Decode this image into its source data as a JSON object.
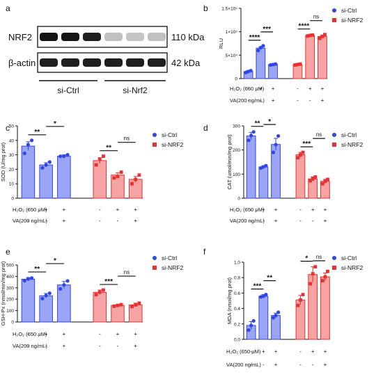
{
  "colors": {
    "blue": "#2f45e8",
    "blue_fill": "#9aa6f5",
    "red": "#e83030",
    "red_fill": "#f5a3a3",
    "blot_band": "#1a1a1a",
    "blot_band_faint": "#bdbdbd"
  },
  "chart_data": [
    {
      "type": "blot",
      "panel_label": "a",
      "rows": [
        {
          "label": "NRF2",
          "size": "110 kDa",
          "intensities": [
            1,
            1,
            0.95,
            0.2,
            0.18,
            0.2
          ]
        },
        {
          "label": "β-actin",
          "size": "42 kDa",
          "intensities": [
            0.95,
            0.95,
            0.95,
            0.95,
            0.95,
            0.95
          ]
        }
      ],
      "groups": [
        "si-Ctrl",
        "si-Nrf2"
      ]
    },
    {
      "type": "bar",
      "panel_label": "b",
      "ylabel": "RLU",
      "yticks": [
        "1.5×10⁵",
        "1×10⁵",
        "5×10⁴",
        "0"
      ],
      "ytick_values": [
        150000,
        100000,
        50000,
        0
      ],
      "ylim": [
        0,
        150000
      ],
      "legend": [
        "si-Ctrl",
        "si-NRF2"
      ],
      "treatments": [
        {
          "label": "H₂O₂ (650 μM)",
          "signs": [
            "-",
            "+",
            "+",
            "-",
            "+",
            "+"
          ]
        },
        {
          "label": "VA(200 ng/mL)",
          "signs": [
            "-",
            "-",
            "+",
            "-",
            "-",
            "+"
          ]
        }
      ],
      "series": [
        {
          "name": "si-Ctrl",
          "values": [
            15000,
            65000,
            30000
          ],
          "errors": [
            2000,
            3000,
            2000
          ],
          "points": [
            [
              13000,
              15000,
              17000
            ],
            [
              60000,
              66000,
              70000
            ],
            [
              29000,
              30000,
              31000
            ]
          ]
        },
        {
          "name": "si-NRF2",
          "values": [
            30000,
            92000,
            90000
          ],
          "errors": [
            2000,
            2000,
            3000
          ],
          "points": [
            [
              29000,
              30000,
              31000
            ],
            [
              91000,
              92000,
              93000
            ],
            [
              86000,
              90000,
              94000
            ]
          ]
        }
      ],
      "significance": [
        {
          "from": 0,
          "to": 1,
          "text": "****"
        },
        {
          "from": 1,
          "to": 2,
          "text": "***"
        },
        {
          "from": 3,
          "to": 4,
          "text": "****"
        },
        {
          "from": 4,
          "to": 5,
          "text": "ns"
        }
      ]
    },
    {
      "type": "bar",
      "panel_label": "c",
      "ylabel": "SOD (U/mg prot)",
      "yticks": [
        "50",
        "40",
        "30",
        "20",
        "10",
        "0"
      ],
      "ytick_values": [
        50,
        40,
        30,
        20,
        10,
        0
      ],
      "ylim": [
        0,
        50
      ],
      "legend": [
        "si-Ctrl",
        "si-NRF2"
      ],
      "treatments": [
        {
          "label": "H₂O₂ (650 μM)",
          "signs": [
            "-",
            "+",
            "+",
            "-",
            "+",
            "+"
          ]
        },
        {
          "label": "VA(200 ng/mL)",
          "signs": [
            "-",
            "-",
            "+",
            "-",
            "-",
            "+"
          ]
        }
      ],
      "series": [
        {
          "name": "si-Ctrl",
          "values": [
            36,
            23,
            29
          ],
          "errors": [
            3,
            1.5,
            1
          ],
          "points": [
            [
              31,
              37,
              40
            ],
            [
              21,
              23,
              25
            ],
            [
              29,
              29,
              30
            ]
          ]
        },
        {
          "name": "si-NRF2",
          "values": [
            26,
            16,
            13
          ],
          "errors": [
            2,
            1.5,
            2
          ],
          "points": [
            [
              23,
              27,
              29
            ],
            [
              14,
              15,
              18
            ],
            [
              10,
              13,
              16
            ]
          ]
        }
      ],
      "significance": [
        {
          "from": 0,
          "to": 1,
          "text": "**"
        },
        {
          "from": 1,
          "to": 2,
          "text": "*"
        },
        {
          "from": 3,
          "to": 4,
          "text": "**"
        },
        {
          "from": 4,
          "to": 5,
          "text": "ns"
        }
      ]
    },
    {
      "type": "bar",
      "panel_label": "d",
      "ylabel": "CAT (umol/min/mg prot)",
      "yticks": [
        "300",
        "200",
        "100",
        "0"
      ],
      "ytick_values": [
        300,
        200,
        100,
        0
      ],
      "ylim": [
        0,
        300
      ],
      "legend": [
        "si-Ctrl",
        "si-NRF2"
      ],
      "treatments": [
        {
          "label": "H₂O₂ (650 μM)",
          "signs": [
            "-",
            "+",
            "+",
            "-",
            "+",
            "+"
          ]
        },
        {
          "label": "VA(200 ng/mL)",
          "signs": [
            "-",
            "-",
            "+",
            "-",
            "-",
            "+"
          ]
        }
      ],
      "series": [
        {
          "name": "si-Ctrl",
          "values": [
            258,
            130,
            223
          ],
          "errors": [
            15,
            5,
            25
          ],
          "points": [
            [
              240,
              260,
              275
            ],
            [
              125,
              130,
              135
            ],
            [
              190,
              222,
              258
            ]
          ]
        },
        {
          "name": "si-NRF2",
          "values": [
            180,
            80,
            70
          ],
          "errors": [
            10,
            8,
            8
          ],
          "points": [
            [
              168,
              180,
              190
            ],
            [
              72,
              80,
              88
            ],
            [
              60,
              70,
              78
            ]
          ]
        }
      ],
      "significance": [
        {
          "from": 0,
          "to": 1,
          "text": "**"
        },
        {
          "from": 1,
          "to": 2,
          "text": "*"
        },
        {
          "from": 3,
          "to": 4,
          "text": "***"
        },
        {
          "from": 4,
          "to": 5,
          "text": "ns"
        }
      ]
    },
    {
      "type": "bar",
      "panel_label": "e",
      "ylabel": "GSH-Px (nmol/min/mg prot)",
      "yticks": [
        "500",
        "400",
        "300",
        "200",
        "100",
        "0"
      ],
      "ytick_values": [
        500,
        400,
        300,
        200,
        100,
        0
      ],
      "ylim": [
        0,
        500
      ],
      "legend": [
        "si-Ctrl",
        "si-NRF2"
      ],
      "treatments": [
        {
          "label": "H₂O₂ (650 μM)",
          "signs": [
            "-",
            "+",
            "+",
            "-",
            "+",
            "+"
          ]
        },
        {
          "label": "VA(200 ng/mL)",
          "signs": [
            "-",
            "-",
            "+",
            "-",
            "-",
            "+"
          ]
        }
      ],
      "series": [
        {
          "name": "si-Ctrl",
          "values": [
            375,
            230,
            325
          ],
          "errors": [
            15,
            20,
            30
          ],
          "points": [
            [
              362,
              378,
              385
            ],
            [
              205,
              232,
              252
            ],
            [
              290,
              325,
              360
            ]
          ]
        },
        {
          "name": "si-NRF2",
          "values": [
            260,
            145,
            150
          ],
          "errors": [
            20,
            8,
            15
          ],
          "points": [
            [
              240,
              262,
              280
            ],
            [
              138,
              145,
              152
            ],
            [
              135,
              150,
              165
            ]
          ]
        }
      ],
      "significance": [
        {
          "from": 0,
          "to": 1,
          "text": "**"
        },
        {
          "from": 1,
          "to": 2,
          "text": "*"
        },
        {
          "from": 3,
          "to": 4,
          "text": "***"
        },
        {
          "from": 4,
          "to": 5,
          "text": "ns"
        }
      ]
    },
    {
      "type": "bar",
      "panel_label": "f",
      "ylabel": "MDA (nmol/mg prot)",
      "yticks": [
        "1.0",
        "0.8",
        "0.6",
        "0.4",
        "0.2",
        "0.0"
      ],
      "ytick_values": [
        1.0,
        0.8,
        0.6,
        0.4,
        0.2,
        0.0
      ],
      "ylim": [
        0,
        1.0
      ],
      "legend": [
        "si-Ctrl",
        "si-NRF2"
      ],
      "treatments": [
        {
          "label": "H₂O₂ (650 μM)",
          "signs": [
            "-",
            "+",
            "+",
            "-",
            "+",
            "+"
          ]
        },
        {
          "label": "VA(200 ng/mL)",
          "signs": [
            "-",
            "-",
            "+",
            "-",
            "-",
            "+"
          ]
        }
      ],
      "series": [
        {
          "name": "si-Ctrl",
          "values": [
            0.18,
            0.56,
            0.31
          ],
          "errors": [
            0.05,
            0.02,
            0.03
          ],
          "points": [
            [
              0.12,
              0.18,
              0.24
            ],
            [
              0.55,
              0.56,
              0.58
            ],
            [
              0.28,
              0.31,
              0.35
            ]
          ]
        },
        {
          "name": "si-NRF2",
          "values": [
            0.51,
            0.84,
            0.81
          ],
          "errors": [
            0.06,
            0.1,
            0.05
          ],
          "points": [
            [
              0.44,
              0.51,
              0.58
            ],
            [
              0.72,
              0.85,
              0.94
            ],
            [
              0.76,
              0.81,
              0.88
            ]
          ]
        }
      ],
      "significance": [
        {
          "from": 0,
          "to": 1,
          "text": "***"
        },
        {
          "from": 1,
          "to": 2,
          "text": "**"
        },
        {
          "from": 3,
          "to": 4,
          "text": "*"
        },
        {
          "from": 4,
          "to": 5,
          "text": "ns"
        }
      ]
    }
  ]
}
